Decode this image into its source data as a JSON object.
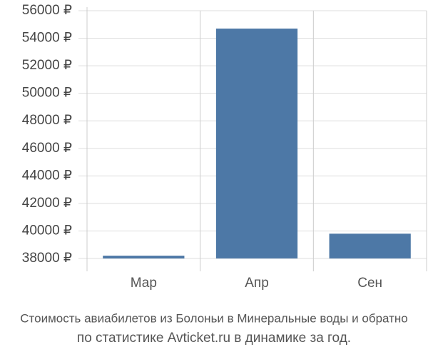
{
  "chart_data": {
    "type": "bar",
    "title": "Стоимость авиабилетов из Болоньи в Минеральные воды и обратно",
    "subtitle": "по статистике Avticket.ru в динамике за год.",
    "categories": [
      "Мар",
      "Апр",
      "Сен"
    ],
    "values": [
      38200,
      54700,
      39800
    ],
    "color": "#4d78a6",
    "ylim": [
      38000,
      56000
    ],
    "yticks": [
      {
        "value": 38000,
        "label": "38000 ₽"
      },
      {
        "value": 40000,
        "label": "40000 ₽"
      },
      {
        "value": 42000,
        "label": "42000 ₽"
      },
      {
        "value": 44000,
        "label": "44000 ₽"
      },
      {
        "value": 46000,
        "label": "46000 ₽"
      },
      {
        "value": 48000,
        "label": "48000 ₽"
      },
      {
        "value": 50000,
        "label": "50000 ₽"
      },
      {
        "value": 52000,
        "label": "52000 ₽"
      },
      {
        "value": 54000,
        "label": "54000 ₽"
      },
      {
        "value": 56000,
        "label": "56000 ₽"
      }
    ],
    "grid": true
  }
}
